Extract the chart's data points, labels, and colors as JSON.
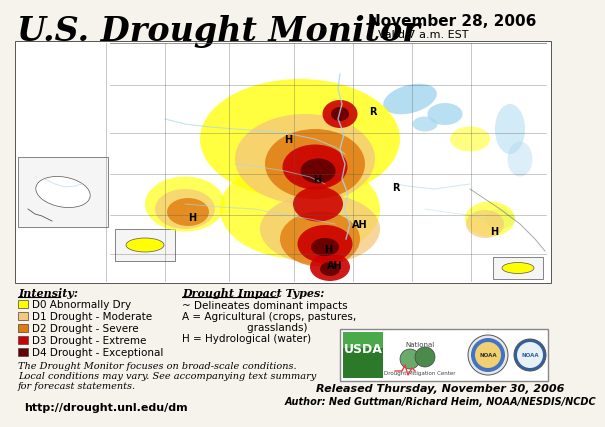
{
  "title": "U.S. Drought Monitor",
  "date_line1": "November 28, 2006",
  "date_line2": "Valid 7 a.m. EST",
  "background_color": "#f5f3ec",
  "map_bg": "#ffffff",
  "legend_title": "Intensity:",
  "legend_items": [
    {
      "label": "D0 Abnormally Dry",
      "color": "#ffff00"
    },
    {
      "label": "D1 Drought - Moderate",
      "color": "#f5c87a"
    },
    {
      "label": "D2 Drought - Severe",
      "color": "#e07b10"
    },
    {
      "label": "D3 Drought - Extreme",
      "color": "#cc0000"
    },
    {
      "label": "D4 Drought - Exceptional",
      "color": "#660000"
    }
  ],
  "impact_title": "Drought Impact Types:",
  "impact_lines": [
    "~ Delineates dominant impacts",
    "A = Agricultural (crops, pastures,",
    "                    grasslands)",
    "H = Hydrological (water)"
  ],
  "footnote_lines": [
    "The Drought Monitor focuses on broad-scale conditions.",
    "Local conditions may vary. See accompanying text summary",
    "for forecast statements."
  ],
  "url": "http://drought.unl.edu/dm",
  "released_line1": "Released Thursday, November 30, 2006",
  "released_line2": "Author: Ned Guttman/Richard Heim, NOAA/NESDIS/NCDC",
  "usda_box_color": "#ffffff",
  "usda_box_edge": "#888888",
  "water_color": "#a8d8f0",
  "river_color": "#a8d8f0"
}
